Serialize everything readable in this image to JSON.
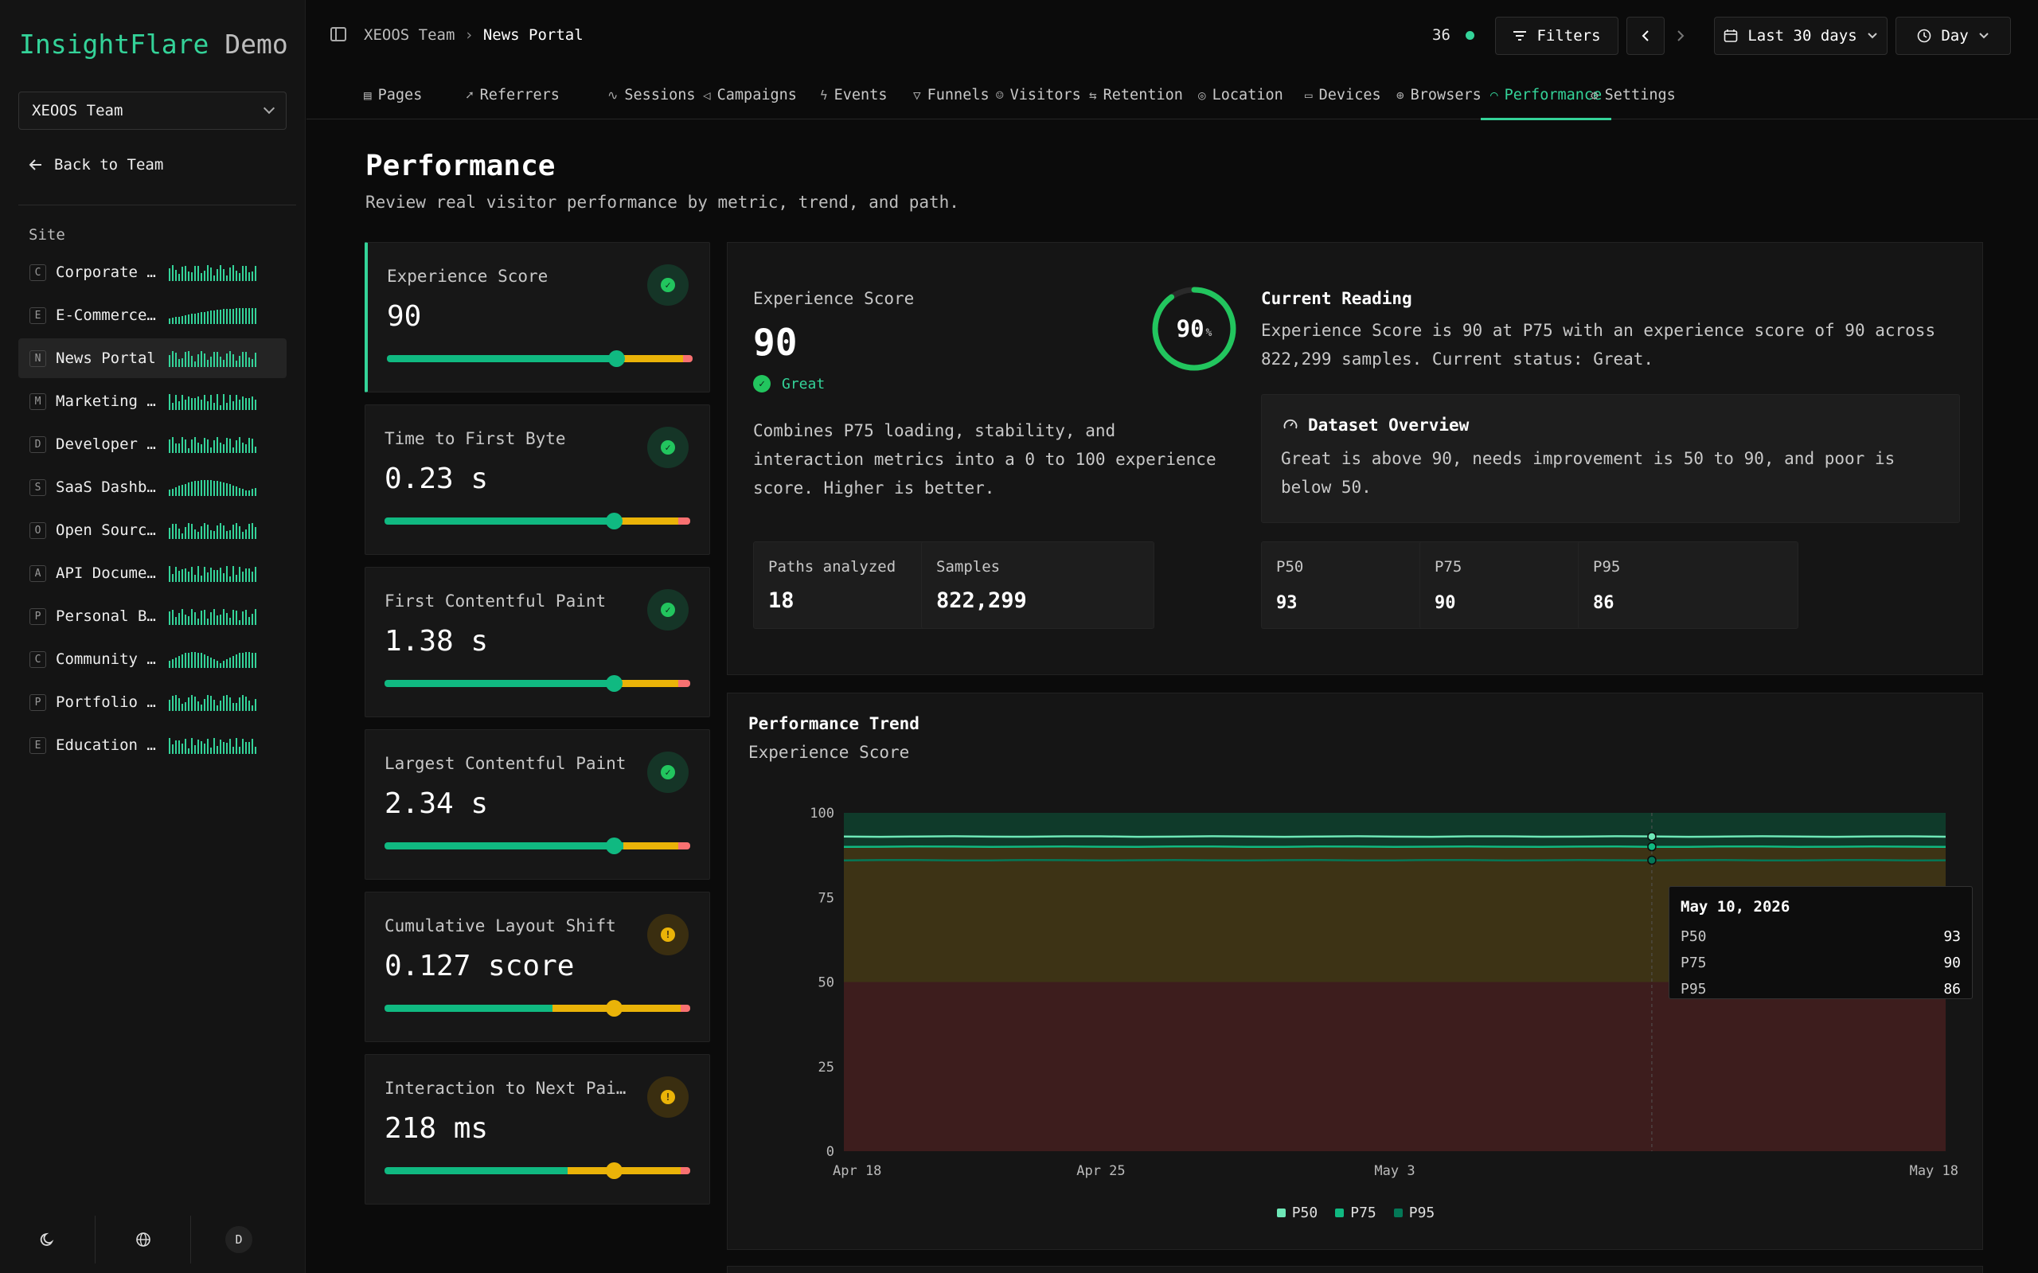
{
  "brand": {
    "name": "InsightFlare",
    "suffix": "Demo"
  },
  "sidebar": {
    "team_select": "XEOOS Team",
    "back_label": "Back to Team",
    "section_label": "Site",
    "sites": [
      {
        "letter": "C",
        "name": "Corporate W…",
        "active": false
      },
      {
        "letter": "E",
        "name": "E-Commerce …",
        "active": false
      },
      {
        "letter": "N",
        "name": "News Portal",
        "active": true
      },
      {
        "letter": "M",
        "name": "Marketing L…",
        "active": false
      },
      {
        "letter": "D",
        "name": "Developer D…",
        "active": false
      },
      {
        "letter": "S",
        "name": "SaaS Dashbo…",
        "active": false
      },
      {
        "letter": "O",
        "name": "Open Source…",
        "active": false
      },
      {
        "letter": "A",
        "name": "API Documen…",
        "active": false
      },
      {
        "letter": "P",
        "name": "Personal Bl…",
        "active": false
      },
      {
        "letter": "C",
        "name": "Community F…",
        "active": false
      },
      {
        "letter": "P",
        "name": "Portfolio S…",
        "active": false
      },
      {
        "letter": "E",
        "name": "Education P…",
        "active": false
      }
    ],
    "footer": {
      "theme_icon": "moon-icon",
      "language_icon": "globe-icon",
      "avatar": "D"
    }
  },
  "header": {
    "breadcrumb": {
      "team": "XEOOS Team",
      "site": "News Portal"
    },
    "live_count": "36",
    "filters_label": "Filters",
    "range_label": "Last 30 days",
    "interval_label": "Day"
  },
  "tabs": [
    {
      "label": "Pages",
      "icon": "▤"
    },
    {
      "label": "Referrers",
      "icon": "➚"
    },
    {
      "label": "Sessions",
      "icon": "∿"
    },
    {
      "label": "Campaigns",
      "icon": "◁"
    },
    {
      "label": "Events",
      "icon": "ϟ"
    },
    {
      "label": "Funnels",
      "icon": "▽"
    },
    {
      "label": "Visitors",
      "icon": "☺"
    },
    {
      "label": "Retention",
      "icon": "⇆"
    },
    {
      "label": "Location",
      "icon": "◎"
    },
    {
      "label": "Devices",
      "icon": "▭"
    },
    {
      "label": "Browsers",
      "icon": "⊕"
    },
    {
      "label": "Performance",
      "icon": "◠"
    },
    {
      "label": "Settings",
      "icon": "⚙"
    }
  ],
  "page": {
    "title": "Performance",
    "subtitle": "Review real visitor performance by metric, trend, and path."
  },
  "metrics": [
    {
      "label": "Experience Score",
      "value": "90",
      "status": "good",
      "knob": 0.75,
      "good": 0.75,
      "warn": 0.22,
      "poor": 0.03
    },
    {
      "label": "Time to First Byte",
      "value": "0.23 s",
      "status": "good",
      "knob": 0.75,
      "good": 0.75,
      "warn": 0.21,
      "poor": 0.04
    },
    {
      "label": "First Contentful Paint",
      "value": "1.38 s",
      "status": "good",
      "knob": 0.75,
      "good": 0.75,
      "warn": 0.21,
      "poor": 0.04
    },
    {
      "label": "Largest Contentful Paint",
      "value": "2.34 s",
      "status": "good",
      "knob": 0.75,
      "good": 0.78,
      "warn": 0.18,
      "poor": 0.04
    },
    {
      "label": "Cumulative Layout Shift",
      "value": "0.127 score",
      "status": "warn",
      "knob": 0.75,
      "good": 0.55,
      "warn": 0.42,
      "poor": 0.03
    },
    {
      "label": "Interaction to Next Pai…",
      "value": "218 ms",
      "status": "warn",
      "knob": 0.75,
      "good": 0.6,
      "warn": 0.37,
      "poor": 0.03
    }
  ],
  "score": {
    "label": "Experience Score",
    "value": "90",
    "status": "Great",
    "gauge_value": "90",
    "gauge_unit": "%",
    "gauge_fraction": 0.9,
    "description": "Combines P75 loading, stability, and interaction metrics into a 0 to 100 experience score. Higher is better.",
    "current_title": "Current Reading",
    "current_text": "Experience Score is 90 at P75 with an experience score of 90 across 822,299 samples. Current status: Great.",
    "dataset_title": "Dataset Overview",
    "dataset_text": "Great is above 90, needs improvement is 50 to 90, and poor is below 50.",
    "stats": [
      {
        "label": "Paths analyzed",
        "value": "18"
      },
      {
        "label": "Samples",
        "value": "822,299"
      },
      {
        "label": "P50",
        "value": "93"
      },
      {
        "label": "P75",
        "value": "90"
      },
      {
        "label": "P95",
        "value": "86"
      }
    ]
  },
  "trend": {
    "title": "Performance Trend",
    "subtitle": "Experience Score",
    "tooltip": {
      "date": "May 10, 2026",
      "rows": [
        {
          "k": "P50",
          "v": "93"
        },
        {
          "k": "P75",
          "v": "90"
        },
        {
          "k": "P95",
          "v": "86"
        }
      ]
    },
    "legend": [
      "P50",
      "P75",
      "P95"
    ]
  },
  "colors": {
    "accent": "#34d399",
    "p50": "#6ee7b7",
    "p75": "#10b981",
    "p95": "#047857",
    "good_band": "#0f3a2a",
    "warn_band": "#3d3315",
    "poor_band": "#3d1d1d"
  },
  "chart_data": {
    "type": "line",
    "x": [
      "Apr 18",
      "Apr 19",
      "Apr 20",
      "Apr 21",
      "Apr 22",
      "Apr 23",
      "Apr 24",
      "Apr 25",
      "Apr 26",
      "Apr 27",
      "Apr 28",
      "Apr 29",
      "Apr 30",
      "May 1",
      "May 2",
      "May 3",
      "May 4",
      "May 5",
      "May 6",
      "May 7",
      "May 8",
      "May 9",
      "May 10",
      "May 11",
      "May 12",
      "May 13",
      "May 14",
      "May 15",
      "May 16",
      "May 17",
      "May 18"
    ],
    "xticks": [
      "Apr 18",
      "Apr 25",
      "May 3",
      "May 18"
    ],
    "yticks": [
      0,
      25,
      50,
      75,
      100
    ],
    "ylim": [
      0,
      100
    ],
    "bands": [
      {
        "from": 90,
        "to": 100,
        "label": "Great"
      },
      {
        "from": 50,
        "to": 90,
        "label": "Needs improvement"
      },
      {
        "from": 0,
        "to": 50,
        "label": "Poor"
      }
    ],
    "series": [
      {
        "name": "P50",
        "values": [
          93,
          93,
          93,
          93,
          93,
          93,
          93,
          93,
          93,
          93,
          93,
          93,
          93,
          93,
          93,
          93,
          93,
          93,
          93,
          93,
          93,
          93,
          93,
          93,
          93,
          93,
          93,
          93,
          93,
          93,
          93
        ]
      },
      {
        "name": "P75",
        "values": [
          90,
          90,
          90,
          90,
          90,
          90,
          90,
          90,
          90,
          90,
          90,
          90,
          90,
          90,
          90,
          90,
          90,
          90,
          90,
          90,
          90,
          90,
          90,
          90,
          90,
          90,
          90,
          90,
          90,
          90,
          90
        ]
      },
      {
        "name": "P95",
        "values": [
          86,
          86,
          86,
          86,
          86,
          86,
          86,
          86,
          86,
          86,
          86,
          86,
          86,
          86,
          86,
          86,
          86,
          86,
          86,
          86,
          86,
          86,
          86,
          86,
          86,
          86,
          86,
          86,
          86,
          86,
          86
        ]
      }
    ],
    "highlight_x": "May 10"
  }
}
